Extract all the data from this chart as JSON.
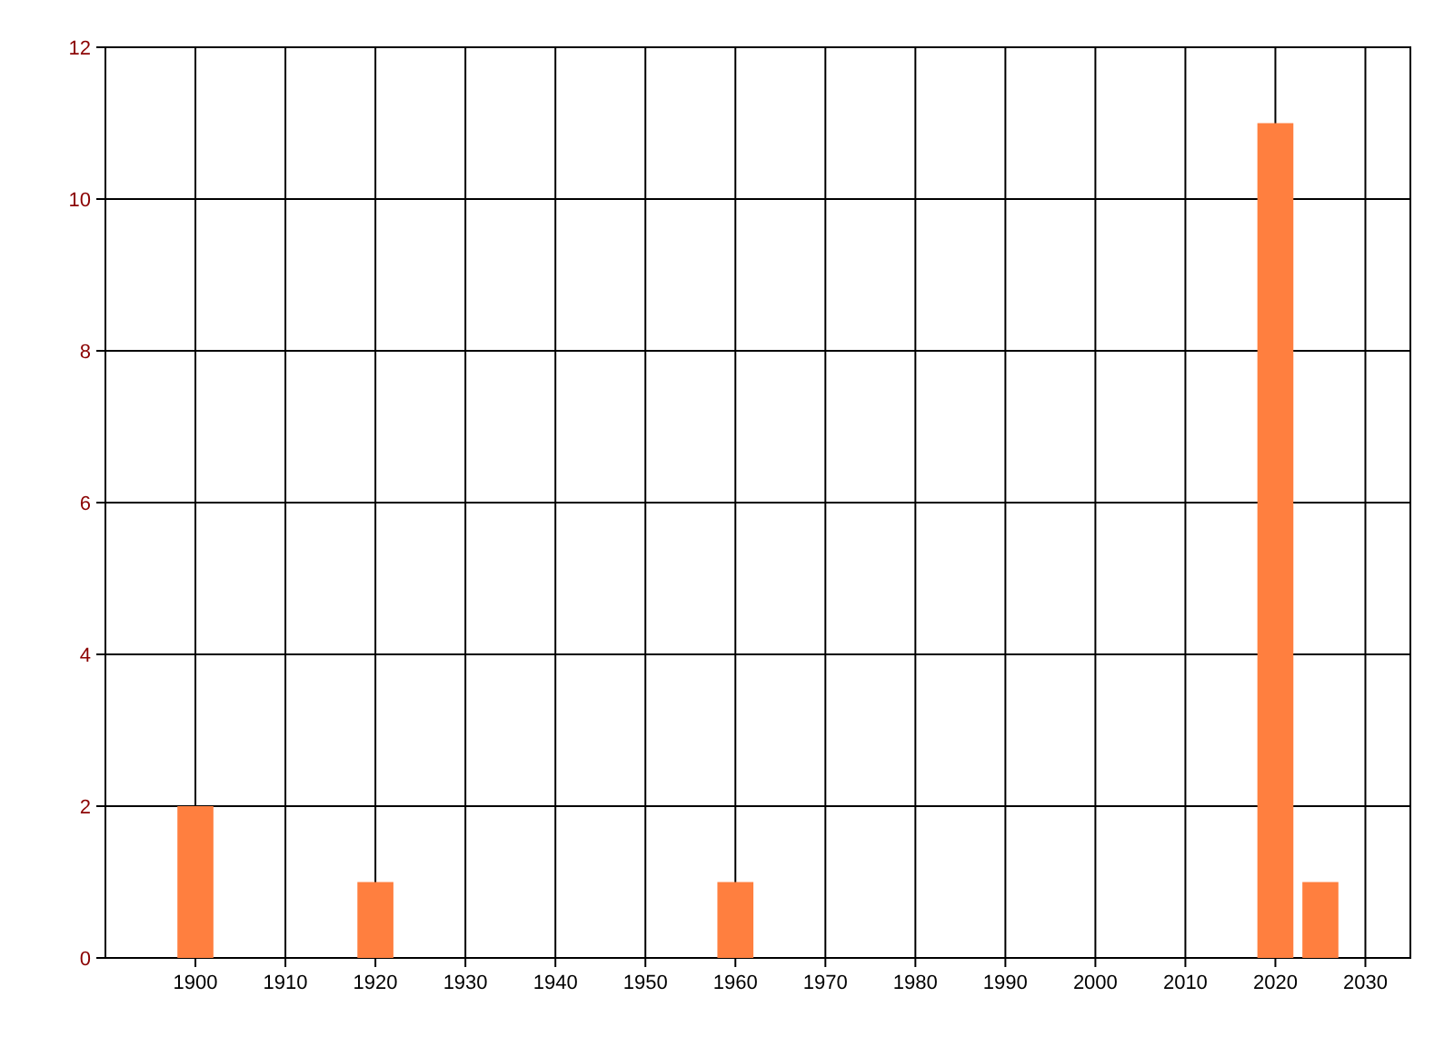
{
  "chart_data": {
    "type": "bar",
    "x": [
      1900,
      1920,
      1960,
      2020,
      2025
    ],
    "values": [
      2,
      1,
      1,
      11,
      1
    ],
    "color": "#ff7f3f",
    "xlim": [
      1890,
      2035
    ],
    "xticks": [
      1900,
      1910,
      1920,
      1930,
      1940,
      1950,
      1960,
      1970,
      1980,
      1990,
      2000,
      2010,
      2020,
      2030
    ],
    "ylim": [
      0,
      12
    ],
    "yticks": [
      0,
      2,
      4,
      6,
      8,
      10,
      12
    ],
    "grid": true
  }
}
